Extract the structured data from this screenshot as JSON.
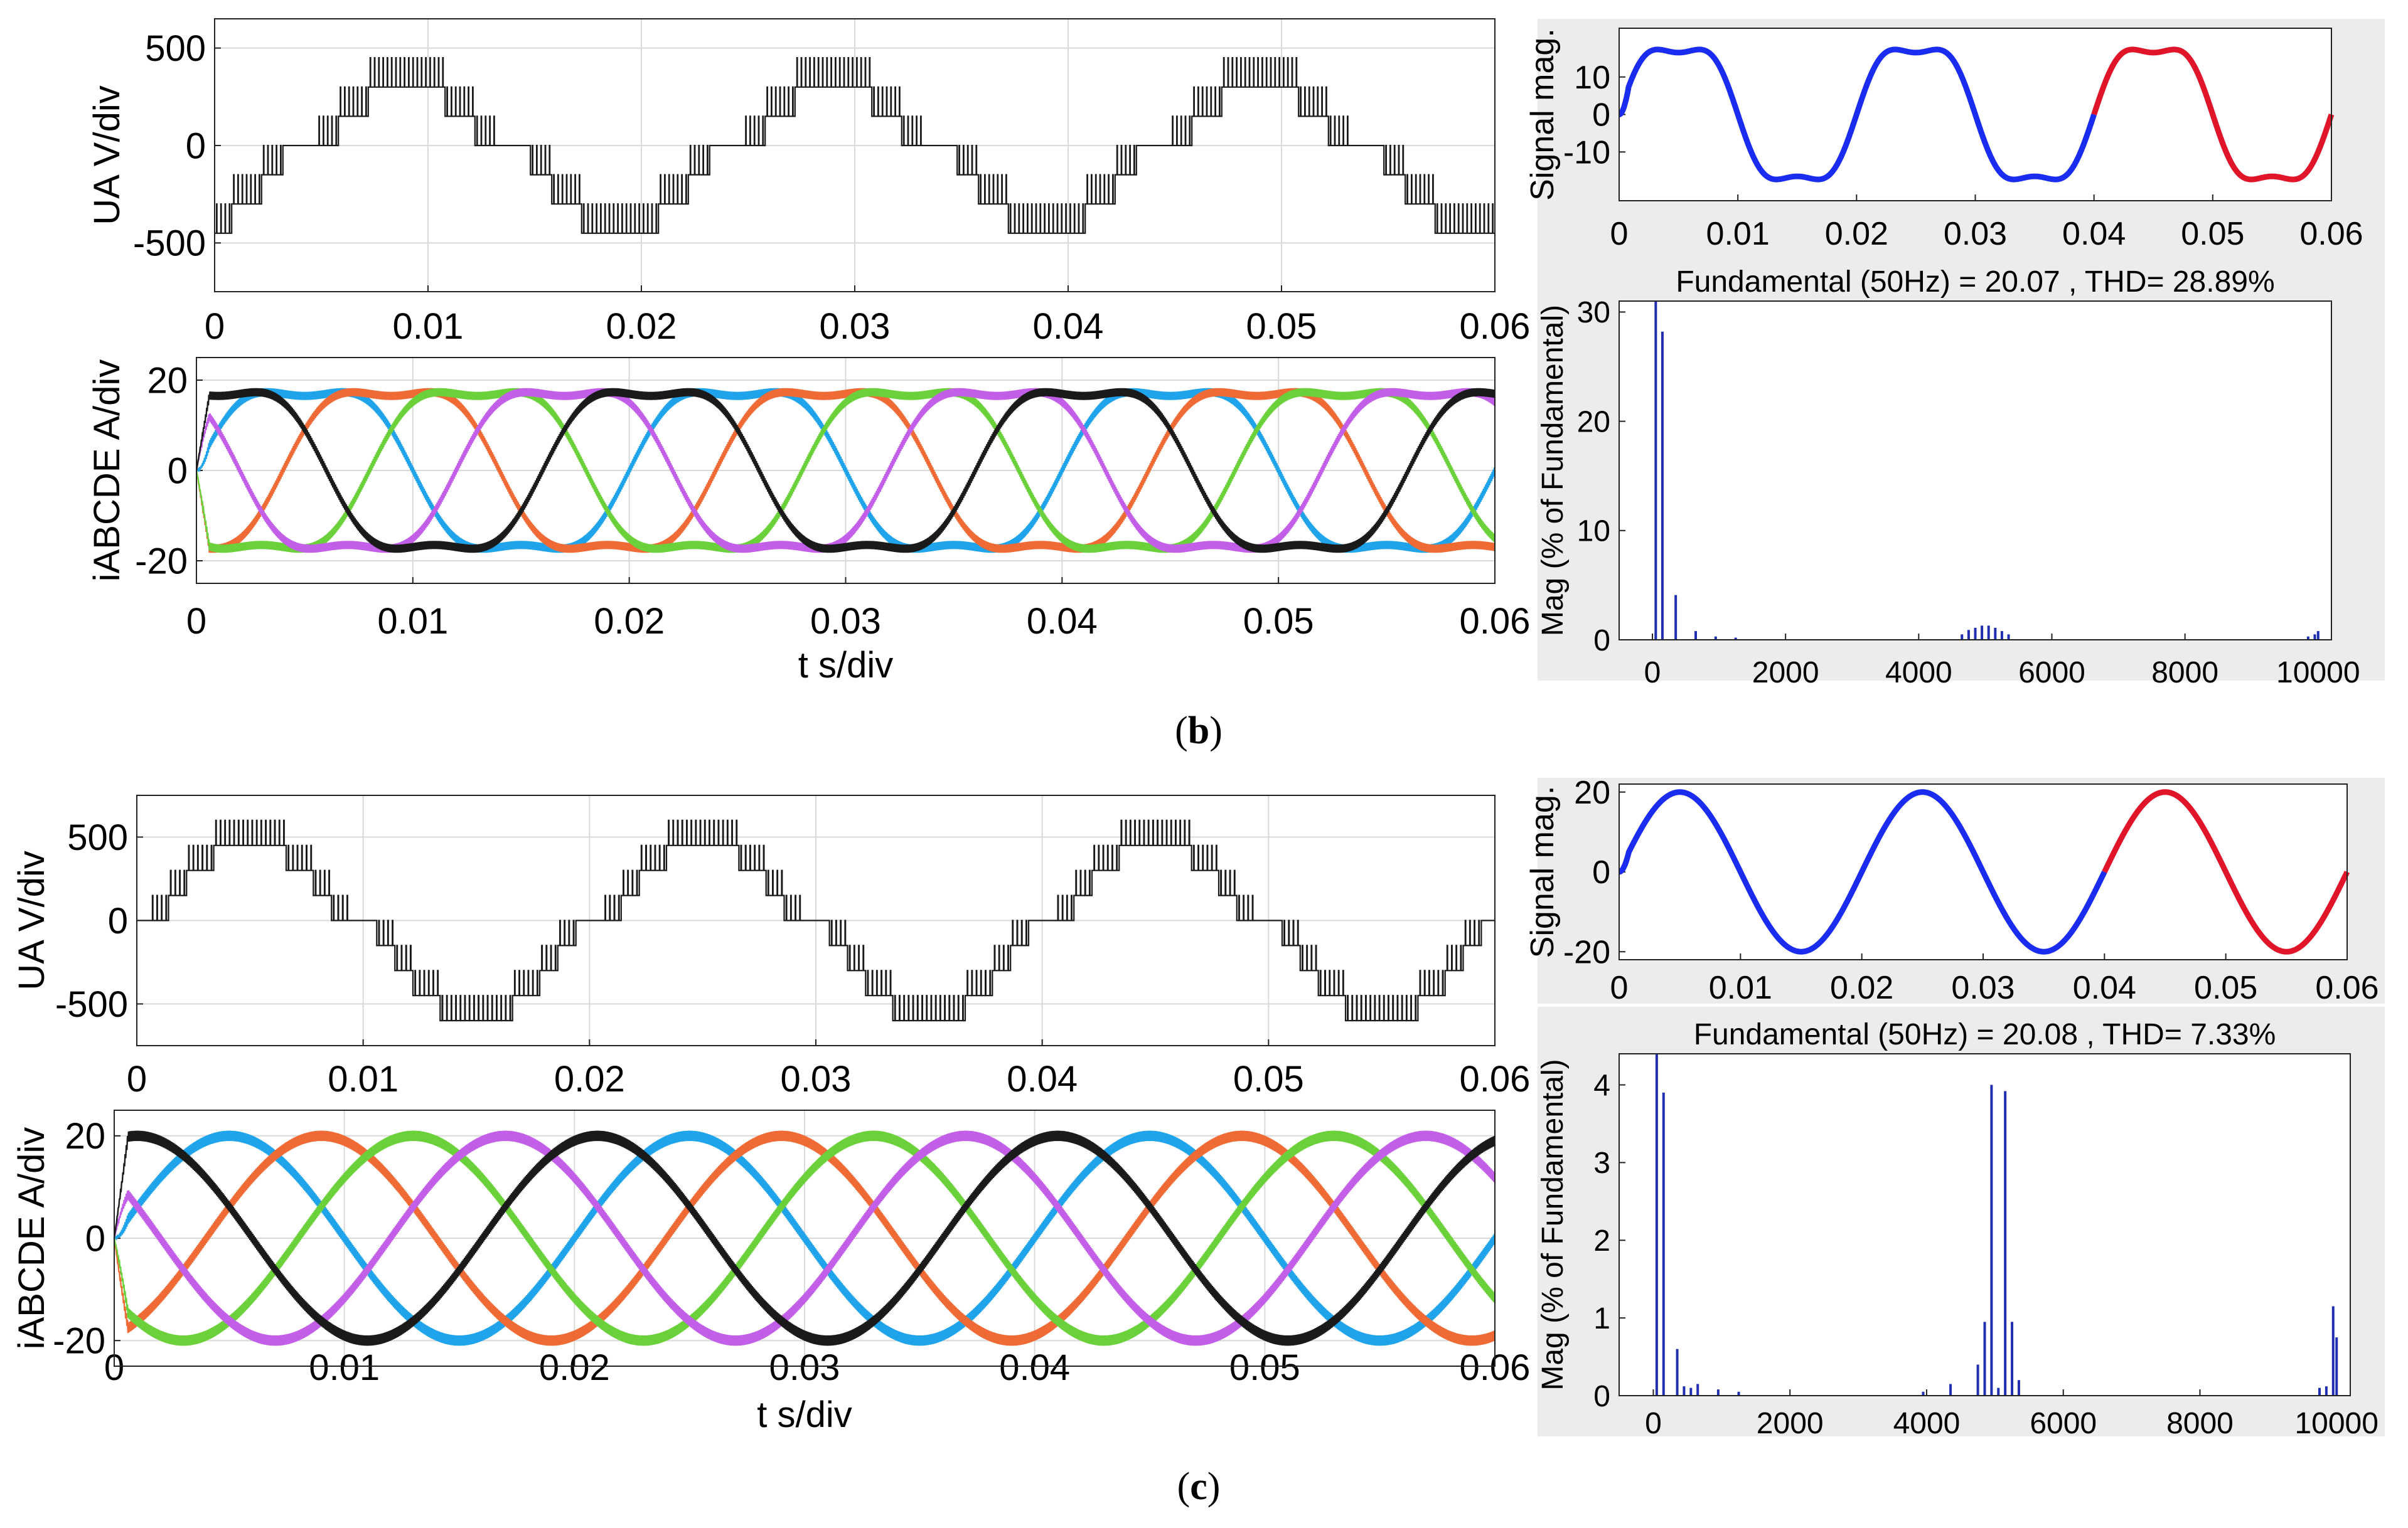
{
  "captions": {
    "b": {
      "open": "(",
      "letter": "b",
      "close": ")"
    },
    "c": {
      "open": "(",
      "letter": "c",
      "close": ")"
    }
  },
  "colors": {
    "voltage": "#1a1a1a",
    "phases": [
      "#1fa3ea",
      "#f06a36",
      "#6ad13a",
      "#c25ee8",
      "#1a1a1a"
    ],
    "fft_bar": "#1f2fb0",
    "signal_blue": "#1a2cf0",
    "signal_red": "#e0152a",
    "grid": "#d9d9d9"
  },
  "chart_data": [
    {
      "id": "b-voltage",
      "type": "line",
      "panel": "b",
      "title": "",
      "xlabel": "",
      "ylabel": "UA V/div",
      "xlim": [
        0,
        0.06
      ],
      "ylim": [
        -750,
        650
      ],
      "xticks": [
        0,
        0.01,
        0.02,
        0.03,
        0.04,
        0.05,
        0.06
      ],
      "xtick_labels": [
        "0",
        "0.01",
        "0.02",
        "0.03",
        "0.04",
        "0.05",
        "0.06"
      ],
      "yticks": [
        500,
        0,
        -500
      ],
      "ytick_labels": [
        "500",
        "0",
        "-500"
      ],
      "grid": true,
      "series": [
        {
          "name": "UA",
          "kind": "pwm_staircase",
          "frequency_hz": 50,
          "switching_freq_hz": 5000,
          "level_step_v": 150,
          "peak_v": 450,
          "levels": [
            0,
            150,
            300,
            450
          ],
          "phase_offset_s": 0.004
        }
      ]
    },
    {
      "id": "b-current",
      "type": "line",
      "panel": "b",
      "title": "",
      "xlabel": "t s/div",
      "ylabel": "iABCDE A/div",
      "xlim": [
        0,
        0.06
      ],
      "ylim": [
        -25,
        25
      ],
      "xticks": [
        0,
        0.01,
        0.02,
        0.03,
        0.04,
        0.05,
        0.06
      ],
      "xtick_labels": [
        "0",
        "0.01",
        "0.02",
        "0.03",
        "0.04",
        "0.05",
        "0.06"
      ],
      "yticks": [
        20,
        0,
        -20
      ],
      "ytick_labels": [
        "20",
        "0",
        "-20"
      ],
      "grid": true,
      "series": [
        {
          "name": "iA",
          "phase_deg": 0
        },
        {
          "name": "iB",
          "phase_deg": -72
        },
        {
          "name": "iC",
          "phase_deg": -144
        },
        {
          "name": "iD",
          "phase_deg": -216
        },
        {
          "name": "iE",
          "phase_deg": -288
        }
      ],
      "frequency_hz": 50,
      "amplitude_a": 20,
      "third_harmonic_a": 3.5,
      "ripple_a": 0.9
    },
    {
      "id": "b-signal",
      "type": "line",
      "panel": "b",
      "title": "",
      "xlabel": "",
      "ylabel": "Signal mag.",
      "xlim": [
        0,
        0.06
      ],
      "ylim": [
        -23,
        23
      ],
      "xticks": [
        0,
        0.01,
        0.02,
        0.03,
        0.04,
        0.05,
        0.06
      ],
      "xtick_labels": [
        "0",
        "0.01",
        "0.02",
        "0.03",
        "0.04",
        "0.05",
        "0.06"
      ],
      "yticks": [
        10,
        0,
        -10
      ],
      "ytick_labels": [
        "10",
        "0",
        "-10"
      ],
      "grid": false,
      "frequency_hz": 50,
      "amplitude": 20,
      "third_harmonic": 3.5,
      "highlight_range_s": [
        0.04,
        0.06
      ]
    },
    {
      "id": "b-fft",
      "type": "bar",
      "panel": "b",
      "title": "Fundamental (50Hz) = 20.07 , THD= 28.89%",
      "xlabel": "",
      "ylabel": "Mag (% of Fundamental)",
      "xlim": [
        -500,
        10200
      ],
      "ylim": [
        0,
        31
      ],
      "xticks": [
        0,
        2000,
        4000,
        6000,
        8000,
        10000
      ],
      "xtick_labels": [
        "0",
        "2000",
        "4000",
        "6000",
        "8000",
        "10000"
      ],
      "yticks": [
        0,
        10,
        20,
        30
      ],
      "ytick_labels": [
        "0",
        "10",
        "20",
        "30"
      ],
      "grid": false,
      "freq_hz": [
        50,
        150,
        350,
        650,
        950,
        1250,
        4650,
        4750,
        4850,
        4950,
        5050,
        5150,
        5250,
        5350,
        9850,
        9950,
        10000
      ],
      "values": [
        31,
        28.2,
        4.1,
        0.8,
        0.3,
        0.2,
        0.5,
        0.9,
        1.1,
        1.3,
        1.3,
        1.1,
        0.8,
        0.5,
        0.3,
        0.5,
        0.8
      ]
    },
    {
      "id": "c-voltage",
      "type": "line",
      "panel": "c",
      "title": "",
      "xlabel": "",
      "ylabel": "UA V/div",
      "xlim": [
        0,
        0.06
      ],
      "ylim": [
        -750,
        750
      ],
      "xticks": [
        0,
        0.01,
        0.02,
        0.03,
        0.04,
        0.05,
        0.06
      ],
      "xtick_labels": [
        "0",
        "0.01",
        "0.02",
        "0.03",
        "0.04",
        "0.05",
        "0.06"
      ],
      "yticks": [
        500,
        0,
        -500
      ],
      "ytick_labels": [
        "500",
        "0",
        "-500"
      ],
      "grid": true,
      "series": [
        {
          "name": "UA",
          "kind": "pwm_staircase",
          "frequency_hz": 50,
          "switching_freq_hz": 5000,
          "level_step_v": 150,
          "peak_v": 600,
          "levels": [
            0,
            150,
            300,
            450,
            600
          ],
          "phase_offset_s": 0.0
        }
      ]
    },
    {
      "id": "c-current",
      "type": "line",
      "panel": "c",
      "title": "",
      "xlabel": "t s/div",
      "ylabel": "iABCDE A/div",
      "xlim": [
        0,
        0.06
      ],
      "ylim": [
        -25,
        25
      ],
      "xticks": [
        0,
        0.01,
        0.02,
        0.03,
        0.04,
        0.05,
        0.06
      ],
      "xtick_labels": [
        "0",
        "0.01",
        "0.02",
        "0.03",
        "0.04",
        "0.05",
        "0.06"
      ],
      "yticks": [
        20,
        0,
        -20
      ],
      "ytick_labels": [
        "20",
        "0",
        "-20"
      ],
      "grid": true,
      "series": [
        {
          "name": "iA",
          "phase_deg": 0
        },
        {
          "name": "iB",
          "phase_deg": -72
        },
        {
          "name": "iC",
          "phase_deg": -144
        },
        {
          "name": "iD",
          "phase_deg": -216
        },
        {
          "name": "iE",
          "phase_deg": -288
        }
      ],
      "frequency_hz": 50,
      "amplitude_a": 20,
      "third_harmonic_a": 0,
      "ripple_a": 1.0
    },
    {
      "id": "c-signal",
      "type": "line",
      "panel": "c",
      "title": "",
      "xlabel": "",
      "ylabel": "Signal mag.",
      "xlim": [
        0,
        0.06
      ],
      "ylim": [
        -22,
        22
      ],
      "xticks": [
        0,
        0.01,
        0.02,
        0.03,
        0.04,
        0.05,
        0.06
      ],
      "xtick_labels": [
        "0",
        "0.01",
        "0.02",
        "0.03",
        "0.04",
        "0.05",
        "0.06"
      ],
      "yticks": [
        20,
        0,
        -20
      ],
      "ytick_labels": [
        "20",
        "0",
        "-20"
      ],
      "grid": false,
      "frequency_hz": 50,
      "amplitude": 20,
      "third_harmonic": 0,
      "highlight_range_s": [
        0.04,
        0.06
      ]
    },
    {
      "id": "c-fft",
      "type": "bar",
      "panel": "c",
      "title": "Fundamental (50Hz) = 20.08 , THD= 7.33%",
      "xlabel": "",
      "ylabel": "Mag (% of Fundamental)",
      "xlim": [
        -500,
        10200
      ],
      "ylim": [
        0,
        4.4
      ],
      "xticks": [
        0,
        2000,
        4000,
        6000,
        8000,
        10000
      ],
      "xtick_labels": [
        "0",
        "2000",
        "4000",
        "6000",
        "8000",
        "10000"
      ],
      "yticks": [
        0,
        1,
        2,
        3,
        4
      ],
      "ytick_labels": [
        "0",
        "1",
        "2",
        "3",
        "4"
      ],
      "grid": false,
      "freq_hz": [
        50,
        150,
        350,
        450,
        550,
        650,
        950,
        1250,
        3950,
        4350,
        4750,
        4850,
        4950,
        5050,
        5150,
        5250,
        5350,
        9750,
        9850,
        9950,
        10000
      ],
      "values": [
        4.4,
        3.9,
        0.6,
        0.12,
        0.1,
        0.15,
        0.08,
        0.05,
        0.05,
        0.15,
        0.4,
        0.95,
        4.0,
        0.1,
        3.92,
        0.95,
        0.2,
        0.1,
        0.12,
        1.15,
        0.75
      ]
    }
  ]
}
